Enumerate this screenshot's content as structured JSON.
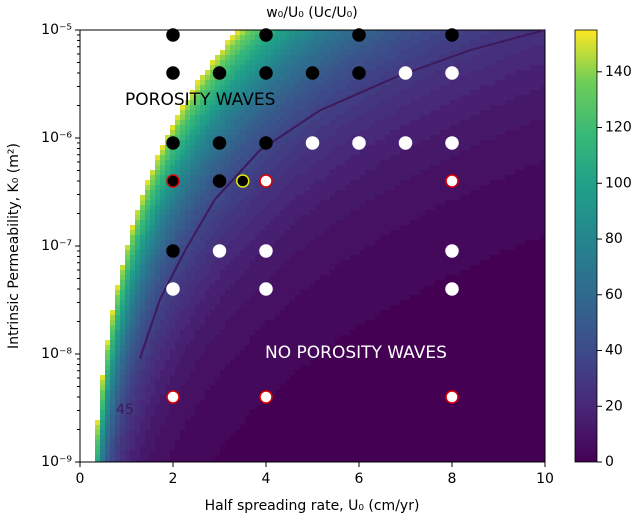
{
  "chart_data": {
    "type": "scatter",
    "title": "w₀/U₀ (Uc/U₀)",
    "x_label": "Half spreading rate, U₀ (cm/yr)",
    "y_label": "Intrinsic Permeability, K₀ (m²)",
    "annotations": [
      "POROSITY WAVES",
      "NO POROSITY WAVES"
    ],
    "xlim": [
      0,
      10
    ],
    "xticks": [
      0,
      2,
      4,
      6,
      8,
      10
    ],
    "ylim": [
      1e-09,
      1e-05
    ],
    "log_y": true,
    "yticks": [
      {
        "value": 1e-09,
        "label": "10⁻⁹"
      },
      {
        "value": 1e-08,
        "label": "10⁻⁸"
      },
      {
        "value": 1e-07,
        "label": "10⁻⁷"
      },
      {
        "value": 1e-06,
        "label": "10⁻⁶"
      },
      {
        "value": 1e-05,
        "label": "10⁻⁵"
      }
    ],
    "colormap": "viridis",
    "clim": [
      0,
      155
    ],
    "cticks": [
      0,
      20,
      40,
      60,
      80,
      100,
      120,
      140
    ],
    "contours": [
      {
        "level": 45,
        "color": "#3e1a5c",
        "x": [
          1.29,
          1.72,
          2.26,
          2.9,
          3.87,
          5.16,
          6.88,
          8.39,
          10
        ],
        "y": [
          9.1e-09,
          3.2e-08,
          9.1e-08,
          2.7e-07,
          7.7e-07,
          1.8e-06,
          3.8e-06,
          6.5e-06,
          1e-05
        ]
      }
    ],
    "series": [
      {
        "color": "#000000",
        "edgecolor": "#000000",
        "x": [
          2,
          4,
          6,
          8,
          2,
          3,
          4,
          5,
          6,
          2,
          3,
          4,
          3,
          2
        ],
        "y": [
          9e-06,
          9e-06,
          9e-06,
          9e-06,
          4e-06,
          4e-06,
          4e-06,
          4e-06,
          4e-06,
          9e-07,
          9e-07,
          9e-07,
          4e-07,
          9e-08
        ]
      },
      {
        "color": "#ffffff",
        "edgecolor": "#ffffff",
        "x": [
          7,
          8,
          5,
          6,
          7,
          8,
          3,
          4,
          8,
          2,
          4,
          8
        ],
        "y": [
          4e-06,
          4e-06,
          9e-07,
          9e-07,
          9e-07,
          9e-07,
          9e-08,
          9e-08,
          9e-08,
          4e-08,
          4e-08,
          4e-08
        ]
      },
      {
        "color": "#000000",
        "edgecolor": "#e00000",
        "x": [
          2
        ],
        "y": [
          4e-07
        ]
      },
      {
        "color": "#000000",
        "edgecolor": "#e8e800",
        "x": [
          3.5
        ],
        "y": [
          4e-07
        ]
      },
      {
        "color": "#ffffff",
        "edgecolor": "#e00000",
        "x": [
          4,
          8,
          2,
          4,
          8
        ],
        "y": [
          4e-07,
          4e-07,
          4e-09,
          4e-09,
          4e-09
        ]
      }
    ]
  }
}
